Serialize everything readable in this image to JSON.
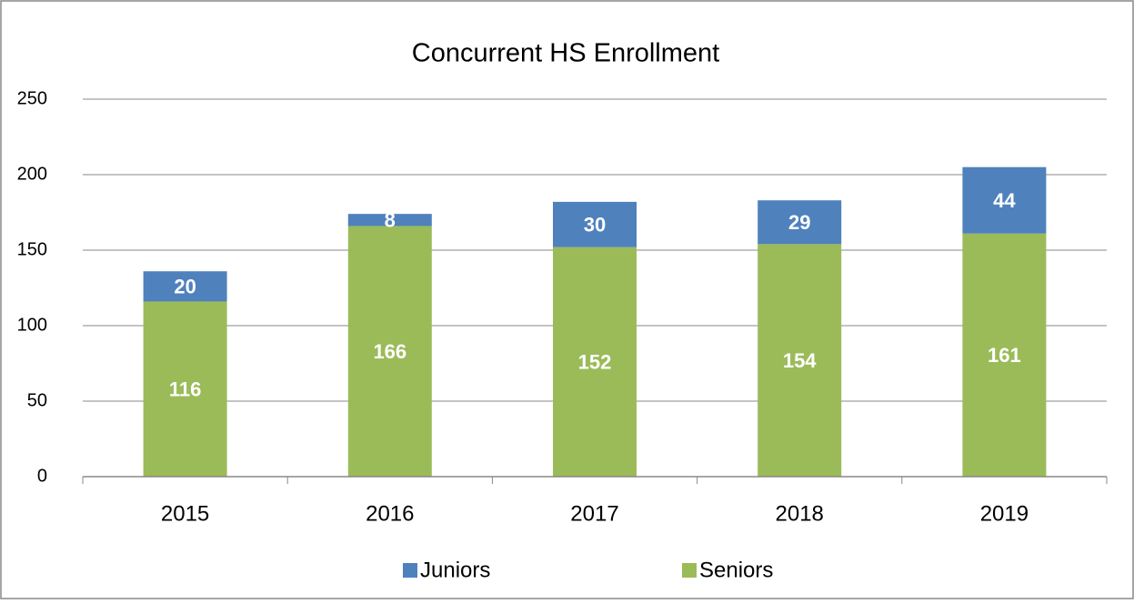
{
  "chart_data": {
    "type": "stacked_bar",
    "title": "Concurrent HS Enrollment",
    "categories": [
      "2015",
      "2016",
      "2017",
      "2018",
      "2019"
    ],
    "series": [
      {
        "name": "Juniors",
        "color": "#4f81bd",
        "values": [
          20,
          8,
          30,
          29,
          44
        ]
      },
      {
        "name": "Seniors",
        "color": "#9bbb59",
        "values": [
          116,
          166,
          152,
          154,
          161
        ]
      }
    ],
    "ylim": [
      0,
      250
    ],
    "yticks": [
      0,
      50,
      100,
      150,
      200,
      250
    ],
    "grid": true,
    "legend": "bottom"
  }
}
